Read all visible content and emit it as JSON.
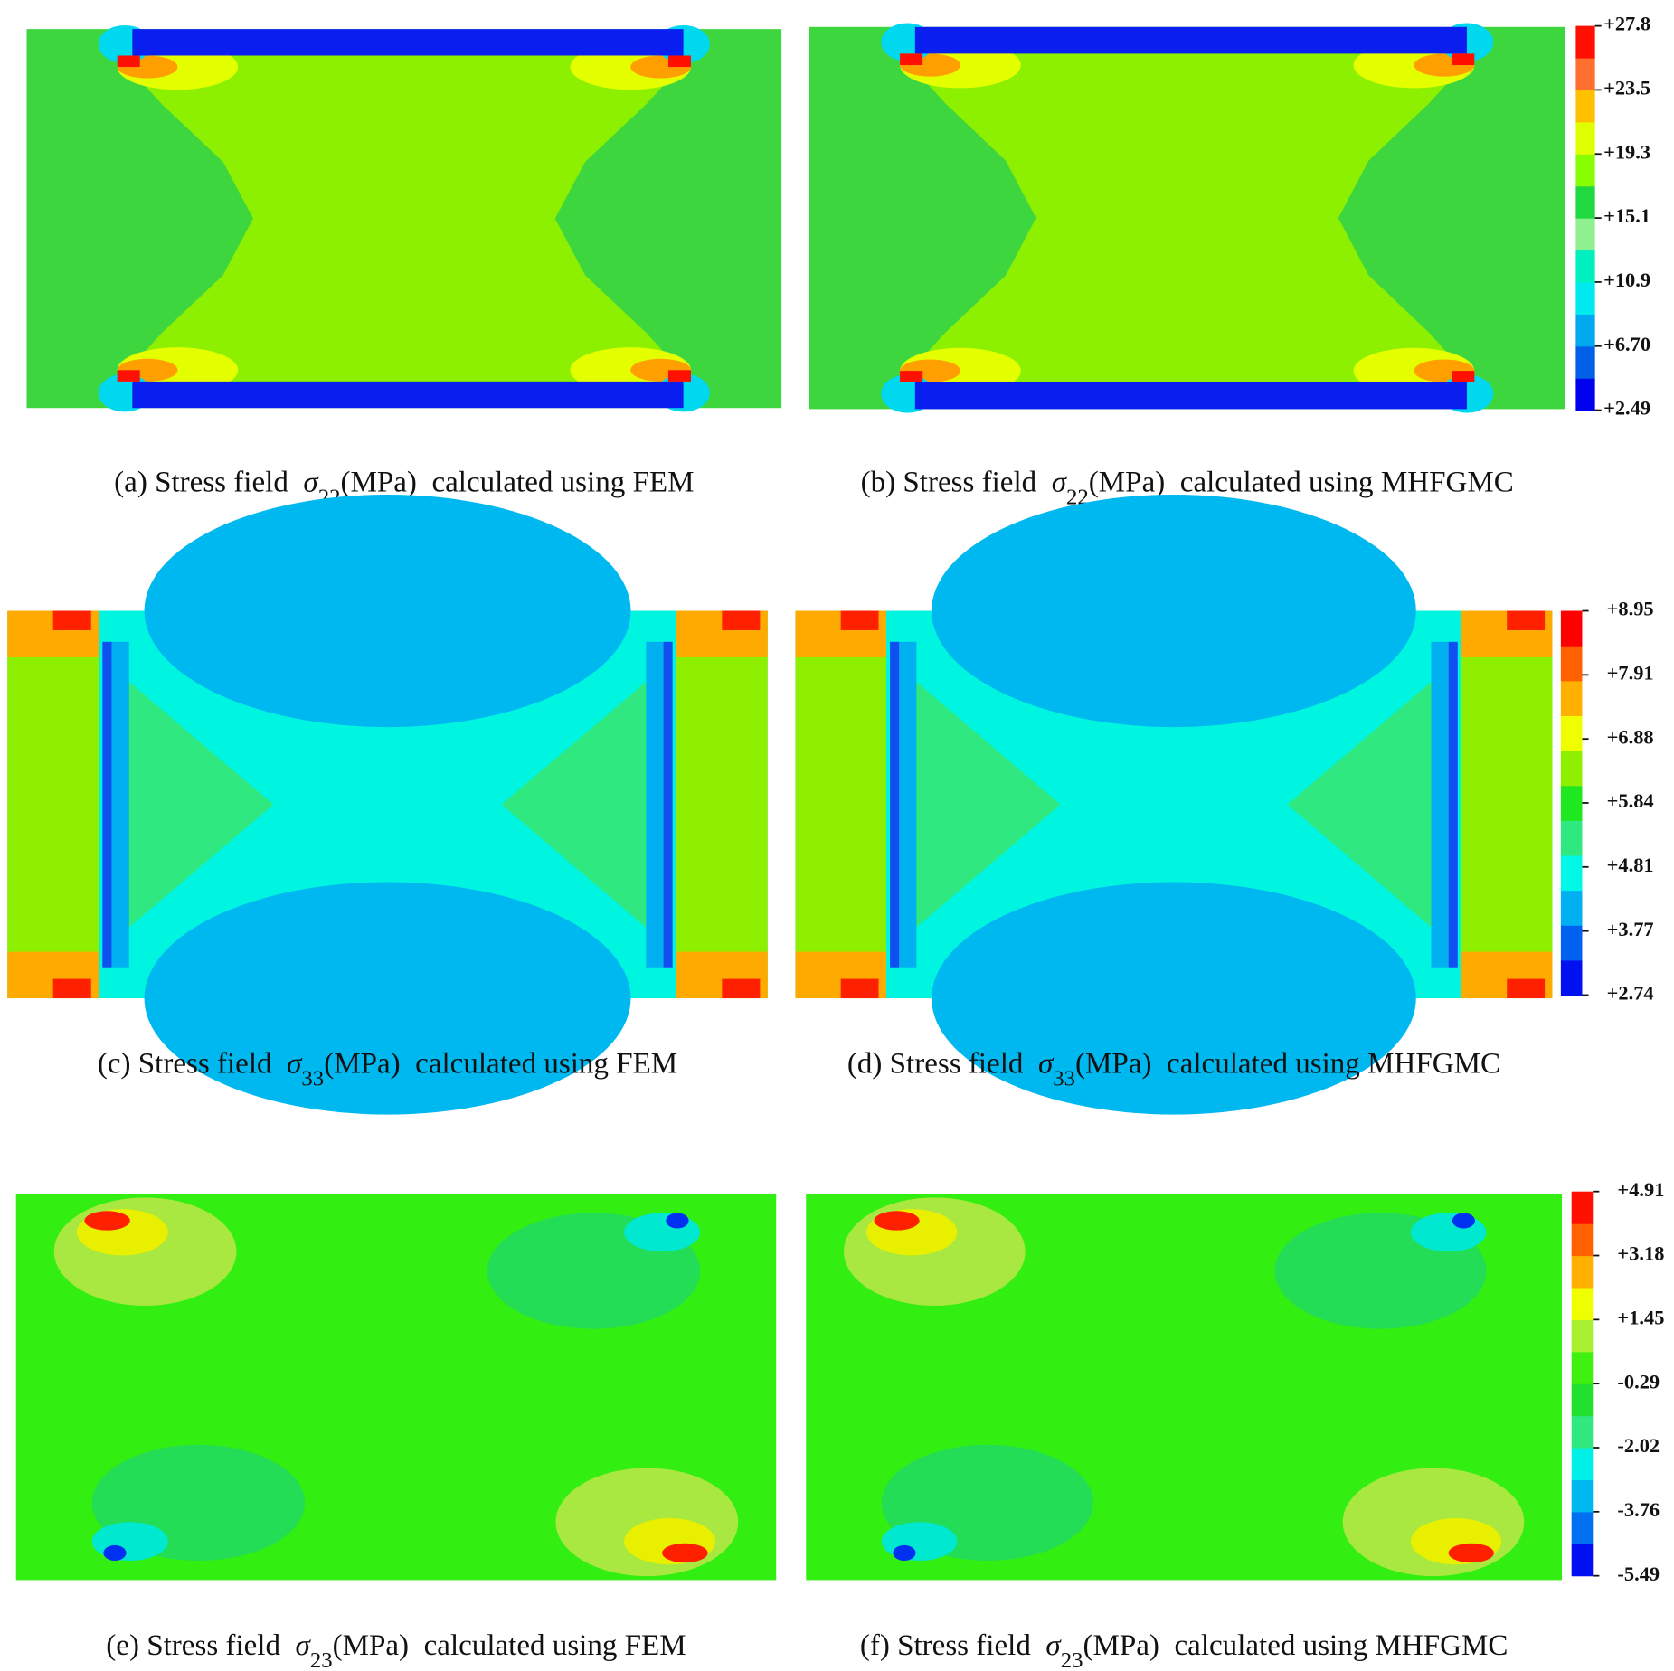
{
  "figure": {
    "rows": [
      {
        "panels": [
          {
            "caption": {
              "label": "(a) Stress field",
              "symbol": "σ",
              "subscript": "22",
              "unit": "(MPa)",
              "method": "calculated using FEM"
            }
          },
          {
            "caption": {
              "label": "(b) Stress field",
              "symbol": "σ",
              "subscript": "22",
              "unit": "(MPa)",
              "method": "calculated using MHFGMC"
            }
          }
        ],
        "colorbar": {
          "ticks": [
            "+27.8",
            "+23.5",
            "+19.3",
            "+15.1",
            "+10.9",
            "+6.70",
            "+2.49"
          ],
          "colors": [
            "#0000ee",
            "#0060e8",
            "#00a8f0",
            "#00e8f0",
            "#00f0c0",
            "#90f090",
            "#20d840",
            "#88ff00",
            "#e0ff00",
            "#ffc000",
            "#ff7030",
            "#ff1000"
          ]
        }
      },
      {
        "panels": [
          {
            "caption": {
              "label": "(c) Stress field",
              "symbol": "σ",
              "subscript": "33",
              "unit": "(MPa)",
              "method": "calculated using FEM"
            }
          },
          {
            "caption": {
              "label": "(d) Stress field",
              "symbol": "σ",
              "subscript": "33",
              "unit": "(MPa)",
              "method": "calculated using MHFGMC"
            }
          }
        ],
        "colorbar": {
          "ticks": [
            "+8.95",
            "+7.91",
            "+6.88",
            "+5.84",
            "+4.81",
            "+3.77",
            "+2.74"
          ],
          "colors": [
            "#0010f0",
            "#0060f0",
            "#00b0f0",
            "#00f8e8",
            "#30e880",
            "#20e820",
            "#8ef000",
            "#f0ff00",
            "#ffb000",
            "#ff6000",
            "#ff0000"
          ]
        }
      },
      {
        "panels": [
          {
            "caption": {
              "label": "(e) Stress field",
              "symbol": "σ",
              "subscript": "23",
              "unit": "(MPa)",
              "method": "calculated using FEM"
            }
          },
          {
            "caption": {
              "label": "(f) Stress field",
              "symbol": "σ",
              "subscript": "23",
              "unit": "(MPa)",
              "method": "calculated using MHFGMC"
            }
          }
        ],
        "colorbar": {
          "ticks": [
            "+4.91",
            "+3.18",
            "+1.45",
            "-0.29",
            "-2.02",
            "-3.76",
            "-5.49"
          ],
          "colors": [
            "#0010f0",
            "#0070f0",
            "#00b8f0",
            "#00f0e8",
            "#30e880",
            "#22e030",
            "#40f010",
            "#a8f030",
            "#f0ff00",
            "#ffb000",
            "#ff6000",
            "#ff1000"
          ]
        }
      }
    ]
  }
}
